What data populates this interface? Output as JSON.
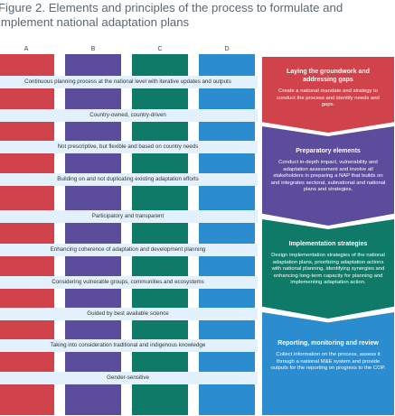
{
  "figure_title": "Figure 2. Elements and principles of the process to formulate and implement national adaptation plans",
  "columns": [
    {
      "label": "A",
      "color": "#d0434a"
    },
    {
      "label": "B",
      "color": "#5b4c9c"
    },
    {
      "label": "C",
      "color": "#0f7a68"
    },
    {
      "label": "D",
      "color": "#2b8dd0"
    }
  ],
  "principles": [
    "Continuous planning process at the national level with iterative updates and outputs",
    "Country-owned, country-driven",
    "Not prescriptive, but flexible and based on country needs",
    "Building on and not duplicating existing adaptation efforts",
    "Participatory and transparent",
    "Enhancing coherence of adaptation and development planning",
    "Considering vulnerable groups, communities and ecosystems",
    "Guided by best available science",
    "Taking into consideration traditional and indigenous knowledge",
    "Gender-sensitive"
  ],
  "elements": [
    {
      "title": "Laying the groundwork and addressing gaps",
      "body": "Create a national mandate and strategy to conduct the process and identify needs and gaps.",
      "color": "#d0434a"
    },
    {
      "title": "Preparatory elements",
      "body": "Conduct in-depth impact, vulnerability and adaptation assessment and involve all stakeholders in preparing a NAP that builds on and integrates sectoral, subnational and national plans and strategies.",
      "color": "#5b4c9c"
    },
    {
      "title": "Implementation strategies",
      "body": "Design implementation strategies of the national adaptation plans, prioritizing adaptation actions with national planning, identifying synergies and enhancing long-term capacity for planning and implementing adaptation action.",
      "color": "#0f7a68"
    },
    {
      "title": "Reporting, monitoring and review",
      "body": "Collect information on the process, assess it through a national M&E system and provide outputs for the reporting on progress to the COP.",
      "color": "#2b8dd0"
    }
  ]
}
